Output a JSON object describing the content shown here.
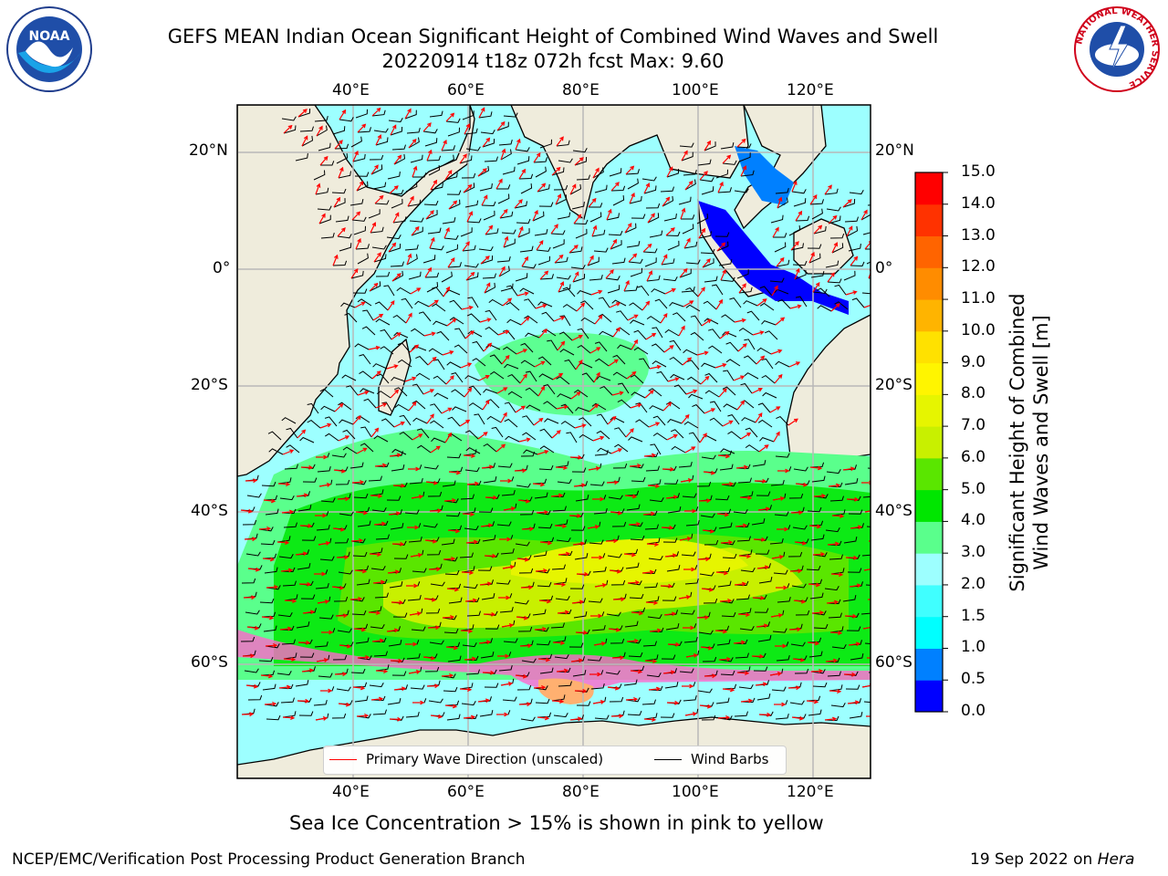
{
  "header": {
    "title_line1": "GEFS MEAN Indian Ocean Significant Height of Combined Wind Waves and Swell",
    "title_line2": "20220914 t18z 072h fcst   Max: 9.60"
  },
  "logos": {
    "noaa": {
      "text": "NOAA",
      "icon": "noaa-seal-icon"
    },
    "nws": {
      "ring_text": "NATIONAL WEATHER SERVICE",
      "icon": "nws-seal-icon"
    }
  },
  "map": {
    "lon_labels": [
      "40°E",
      "60°E",
      "80°E",
      "100°E",
      "120°E"
    ],
    "lat_labels": [
      "20°N",
      "0°",
      "20°S",
      "40°S",
      "60°S"
    ],
    "legend": {
      "wave_direction": "Primary Wave Direction (unscaled)",
      "wind_barbs": "Wind Barbs",
      "wave_color": "#ff0000",
      "barb_color": "#000000"
    },
    "land_color": "#efecdc"
  },
  "colorbar": {
    "title_line1": "Significant Height of Combined",
    "title_line2": "Wind Waves and Swell [m]",
    "tick_labels": [
      "15.0",
      "14.0",
      "13.0",
      "12.0",
      "11.0",
      "10.0",
      "9.0",
      "8.0",
      "7.0",
      "6.0",
      "5.0",
      "4.0",
      "3.0",
      "2.0",
      "1.5",
      "1.0",
      "0.5",
      "0.0"
    ],
    "colors": [
      "#0000ff",
      "#0080ff",
      "#00ffff",
      "#40ffff",
      "#9dffff",
      "#5aff8c",
      "#00e600",
      "#5ae600",
      "#c8f000",
      "#e6f500",
      "#fff500",
      "#ffe100",
      "#ffb400",
      "#ff8c00",
      "#ff6400",
      "#ff3200",
      "#ff0000"
    ]
  },
  "footer": {
    "sea_ice_note": "Sea Ice Concentration > 15% is shown in pink to yellow",
    "branch": "NCEP/EMC/Verification Post Processing Product Generation Branch",
    "date": "19 Sep 2022 on ",
    "host": "Hera"
  }
}
